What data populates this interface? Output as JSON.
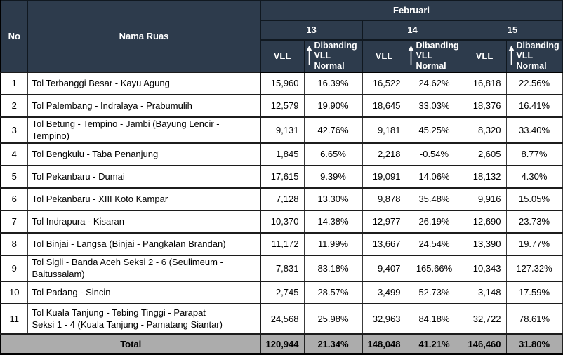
{
  "colors": {
    "header_bg": "#2d3b4c",
    "header_text": "#ffffff",
    "total_bg": "#acacac",
    "body_bg": "#ffffff",
    "body_text": "#000000"
  },
  "table": {
    "header": {
      "no": "No",
      "nama_ruas": "Nama Ruas",
      "month": "Februari",
      "dates": [
        "13",
        "14",
        "15"
      ],
      "vll_label": "VLL",
      "dibanding_line1": "Dibanding",
      "dibanding_line2": "VLL Normal",
      "arrow_icon": "up-arrow"
    },
    "rows": [
      {
        "no": "1",
        "name": "Tol Terbanggi Besar - Kayu Agung",
        "cells": [
          "15,960",
          "16.39%",
          "16,522",
          "24.62%",
          "16,818",
          "22.56%"
        ]
      },
      {
        "no": "2",
        "name": "Tol Palembang - Indralaya - Prabumulih",
        "cells": [
          "12,579",
          "19.90%",
          "18,645",
          "33.03%",
          "18,376",
          "16.41%"
        ]
      },
      {
        "no": "3",
        "name": "Tol Betung - Tempino - Jambi (Bayung Lencir - Tempino)",
        "cells": [
          "9,131",
          "42.76%",
          "9,181",
          "45.25%",
          "8,320",
          "33.40%"
        ]
      },
      {
        "no": "4",
        "name": "Tol Bengkulu - Taba Penanjung",
        "cells": [
          "1,845",
          "6.65%",
          "2,218",
          "-0.54%",
          "2,605",
          "8.77%"
        ]
      },
      {
        "no": "5",
        "name": "Tol Pekanbaru - Dumai",
        "cells": [
          "17,615",
          "9.39%",
          "19,091",
          "14.06%",
          "18,132",
          "4.30%"
        ]
      },
      {
        "no": "6",
        "name": "Tol Pekanbaru - XIII Koto Kampar",
        "cells": [
          "7,128",
          "13.30%",
          "9,878",
          "35.48%",
          "9,916",
          "15.05%"
        ]
      },
      {
        "no": "7",
        "name": "Tol Indrapura - Kisaran",
        "cells": [
          "10,370",
          "14.38%",
          "12,977",
          "26.19%",
          "12,690",
          "23.73%"
        ]
      },
      {
        "no": "8",
        "name": "Tol Binjai - Langsa (Binjai - Pangkalan Brandan)",
        "cells": [
          "11,172",
          "11.99%",
          "13,667",
          "24.54%",
          "13,390",
          "19.77%"
        ]
      },
      {
        "no": "9",
        "name": "Tol Sigli - Banda Aceh Seksi 2 - 6 (Seulimeum - Baitussalam)",
        "cells": [
          "7,831",
          "83.18%",
          "9,407",
          "165.66%",
          "10,343",
          "127.32%"
        ]
      },
      {
        "no": "10",
        "name": "Tol Padang - Sincin",
        "cells": [
          "2,745",
          "28.57%",
          "3,499",
          "52.73%",
          "3,148",
          "17.59%"
        ]
      },
      {
        "no": "11",
        "name": "Tol Kuala Tanjung - Tebing Tinggi - Parapat\nSeksi 1 - 4 (Kuala Tanjung - Pamatang Siantar)",
        "cells": [
          "24,568",
          "25.98%",
          "32,963",
          "84.18%",
          "32,722",
          "78.61%"
        ]
      }
    ],
    "total": {
      "label": "Total",
      "cells": [
        "120,944",
        "21.34%",
        "148,048",
        "41.21%",
        "146,460",
        "31.80%"
      ]
    }
  }
}
